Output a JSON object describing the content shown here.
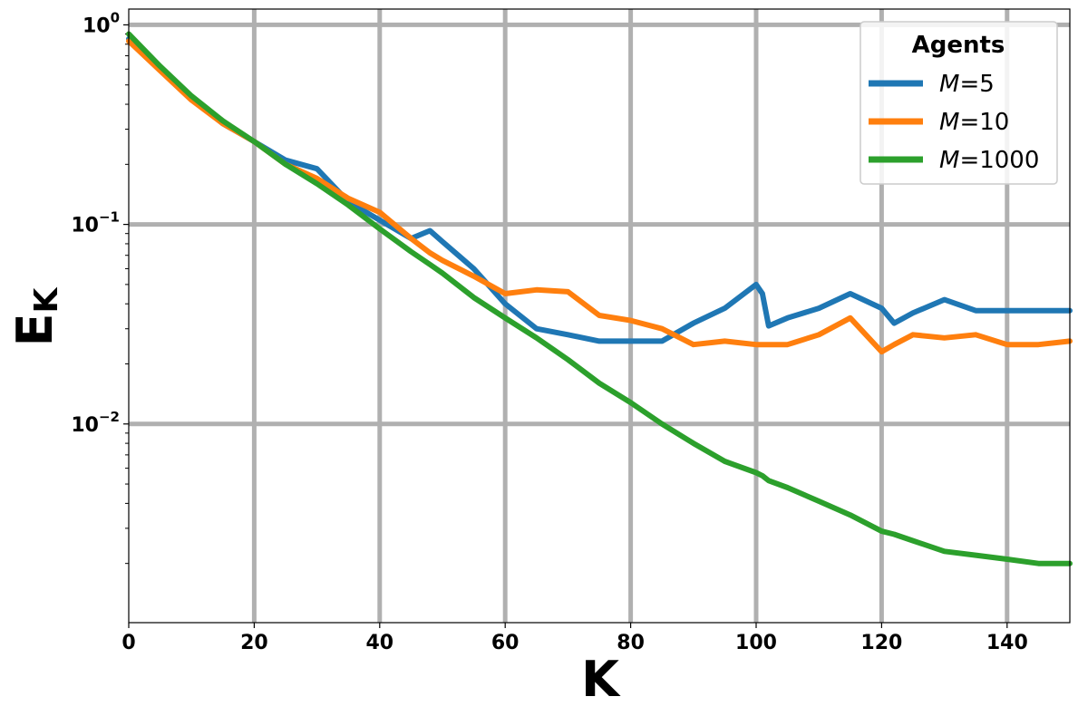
{
  "chart_data": {
    "type": "line",
    "xlabel": "K",
    "ylabel": "E",
    "ylabel_sub": "K",
    "xlim": [
      0,
      150
    ],
    "ylim": [
      0.00101,
      1.2
    ],
    "yscale": "log",
    "grid": true,
    "legend": {
      "title": "Agents",
      "placement": "top-right"
    },
    "x_ticks": [
      {
        "value": 0,
        "label": "0"
      },
      {
        "value": 20,
        "label": "20"
      },
      {
        "value": 40,
        "label": "40"
      },
      {
        "value": 60,
        "label": "60"
      },
      {
        "value": 80,
        "label": "80"
      },
      {
        "value": 100,
        "label": "100"
      },
      {
        "value": 120,
        "label": "120"
      },
      {
        "value": 140,
        "label": "140"
      }
    ],
    "y_ticks": [
      {
        "value": 1,
        "base": "10",
        "exp": "0"
      },
      {
        "value": 0.1,
        "base": "10",
        "exp": "−1"
      },
      {
        "value": 0.01,
        "base": "10",
        "exp": "−2"
      }
    ],
    "x": [
      0,
      5,
      10,
      15,
      20,
      25,
      30,
      35,
      40,
      45,
      48,
      50,
      55,
      60,
      65,
      70,
      75,
      80,
      85,
      90,
      95,
      100,
      101,
      102,
      105,
      110,
      115,
      120,
      122,
      125,
      130,
      135,
      140,
      145,
      150
    ],
    "series": [
      {
        "name": "M=5",
        "prefix": "M",
        "suffix": "=5",
        "color": "#1f77b4",
        "values": [
          0.85,
          0.6,
          0.43,
          0.32,
          0.26,
          0.21,
          0.19,
          0.13,
          0.105,
          0.085,
          0.093,
          0.082,
          0.06,
          0.04,
          0.03,
          0.028,
          0.026,
          0.026,
          0.026,
          0.032,
          0.038,
          0.05,
          0.045,
          0.031,
          0.034,
          0.038,
          0.045,
          0.038,
          0.032,
          0.036,
          0.042,
          0.037,
          0.037,
          0.037,
          0.037
        ]
      },
      {
        "name": "M=10",
        "prefix": "M",
        "suffix": "=10",
        "color": "#ff7f0e",
        "values": [
          0.83,
          0.59,
          0.42,
          0.32,
          0.26,
          0.2,
          0.17,
          0.135,
          0.115,
          0.085,
          0.072,
          0.066,
          0.055,
          0.045,
          0.047,
          0.046,
          0.035,
          0.033,
          0.03,
          0.025,
          0.026,
          0.025,
          0.025,
          0.025,
          0.025,
          0.028,
          0.034,
          0.023,
          0.025,
          0.028,
          0.027,
          0.028,
          0.025,
          0.025,
          0.026
        ]
      },
      {
        "name": "M=1000",
        "prefix": "M",
        "suffix": "=1000",
        "color": "#2ca02c",
        "values": [
          0.9,
          0.62,
          0.44,
          0.33,
          0.26,
          0.2,
          0.16,
          0.125,
          0.095,
          0.073,
          0.063,
          0.057,
          0.043,
          0.034,
          0.027,
          0.021,
          0.016,
          0.0128,
          0.01,
          0.008,
          0.0065,
          0.0057,
          0.0055,
          0.0052,
          0.0048,
          0.0041,
          0.0035,
          0.0029,
          0.0028,
          0.0026,
          0.0023,
          0.0022,
          0.0021,
          0.002,
          0.002
        ]
      }
    ]
  }
}
